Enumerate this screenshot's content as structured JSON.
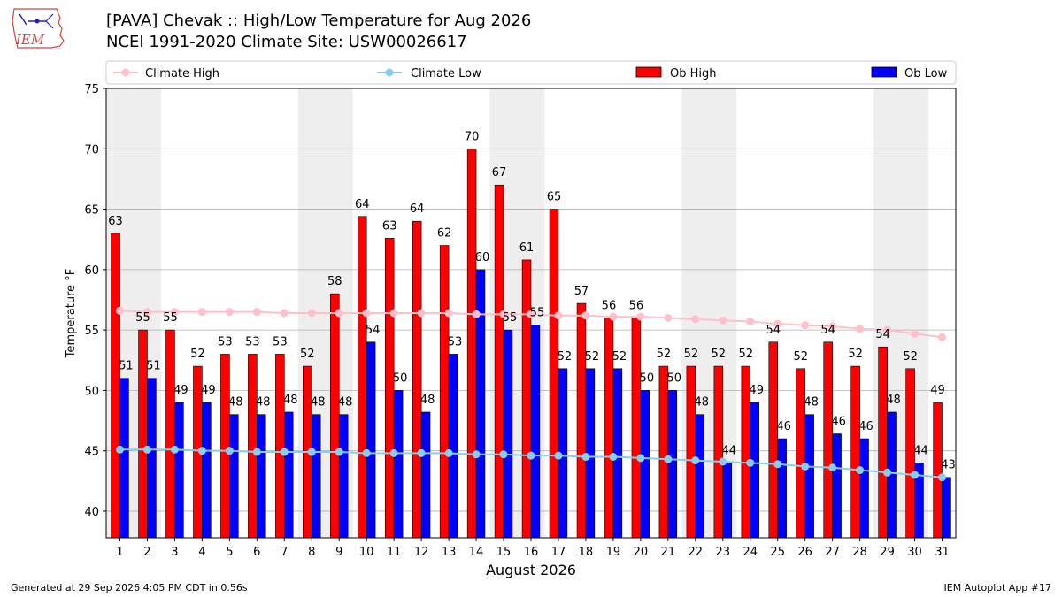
{
  "header": {
    "title_line1": "[PAVA] Chevak :: High/Low Temperature for Aug 2026",
    "title_line2": "NCEI 1991-2020 Climate Site: USW00026617",
    "logo_text": "IEM"
  },
  "footer": {
    "generated": "Generated at 29 Sep 2026 4:05 PM CDT in 0.56s",
    "app": "IEM Autoplot App #17"
  },
  "colors": {
    "ob_high": "#ff0000",
    "ob_low": "#0000ff",
    "climate_high": "#ffc0cb",
    "climate_low": "#87ceeb",
    "weekend_band": "#eeeeee",
    "grid": "#b0b0b0"
  },
  "chart_data": {
    "type": "bar",
    "xlabel": "August 2026",
    "ylabel": "Temperature °F",
    "ylim": [
      37.8,
      75
    ],
    "yticks": [
      40,
      45,
      50,
      55,
      60,
      65,
      70,
      75
    ],
    "grid": "horizontal",
    "legend_position": "top",
    "categories": [
      "1",
      "2",
      "3",
      "4",
      "5",
      "6",
      "7",
      "8",
      "9",
      "10",
      "11",
      "12",
      "13",
      "14",
      "15",
      "16",
      "17",
      "18",
      "19",
      "20",
      "21",
      "22",
      "23",
      "24",
      "25",
      "26",
      "27",
      "28",
      "29",
      "30",
      "31"
    ],
    "shaded_day_pairs": [
      [
        1,
        2
      ],
      [
        8,
        9
      ],
      [
        15,
        16
      ],
      [
        22,
        23
      ],
      [
        29,
        30
      ]
    ],
    "series": [
      {
        "name": "Ob High",
        "kind": "bar",
        "values": [
          63,
          55,
          55,
          52,
          53,
          53,
          53,
          52,
          58,
          64.4,
          62.6,
          64,
          62,
          70,
          67,
          60.8,
          65,
          57.2,
          56,
          56,
          52,
          52,
          52,
          52,
          54,
          51.8,
          54,
          52,
          53.6,
          51.8,
          49
        ],
        "labels": [
          "63",
          "55",
          "55",
          "52",
          "53",
          "53",
          "53",
          "52",
          "58",
          "64",
          "63",
          "64",
          "62",
          "70",
          "67",
          "61",
          "65",
          "57",
          "56",
          "56",
          "52",
          "52",
          "52",
          "52",
          "54",
          "52",
          "54",
          "52",
          "54",
          "52",
          "49"
        ]
      },
      {
        "name": "Ob Low",
        "kind": "bar",
        "values": [
          51,
          51,
          49,
          49,
          48,
          48,
          48.2,
          48,
          48,
          54,
          50,
          48.2,
          53,
          60,
          55,
          55.4,
          51.8,
          51.8,
          51.8,
          50,
          50,
          48,
          44,
          49,
          46,
          48,
          46.4,
          46,
          48.2,
          44,
          42.8
        ],
        "labels": [
          "51",
          "51",
          "49",
          "49",
          "48",
          "48",
          "48",
          "48",
          "48",
          "54",
          "50",
          "48",
          "53",
          "60",
          "55",
          "55",
          "52",
          "52",
          "52",
          "50",
          "50",
          "48",
          "44",
          "49",
          "46",
          "48",
          "46",
          "46",
          "48",
          "44",
          "43"
        ]
      },
      {
        "name": "Climate High",
        "kind": "line",
        "values": [
          56.6,
          56.5,
          56.5,
          56.5,
          56.5,
          56.5,
          56.4,
          56.4,
          56.4,
          56.4,
          56.4,
          56.4,
          56.4,
          56.3,
          56.3,
          56.3,
          56.2,
          56.2,
          56.1,
          56.1,
          56.0,
          55.9,
          55.8,
          55.7,
          55.5,
          55.4,
          55.3,
          55.1,
          55.0,
          54.7,
          54.4
        ]
      },
      {
        "name": "Climate Low",
        "kind": "line",
        "values": [
          45.1,
          45.1,
          45.1,
          45.0,
          45.0,
          44.9,
          44.9,
          44.9,
          44.9,
          44.8,
          44.8,
          44.8,
          44.8,
          44.7,
          44.7,
          44.6,
          44.6,
          44.5,
          44.5,
          44.4,
          44.3,
          44.2,
          44.1,
          44.0,
          43.9,
          43.7,
          43.6,
          43.4,
          43.2,
          43.0,
          42.8
        ]
      }
    ]
  }
}
